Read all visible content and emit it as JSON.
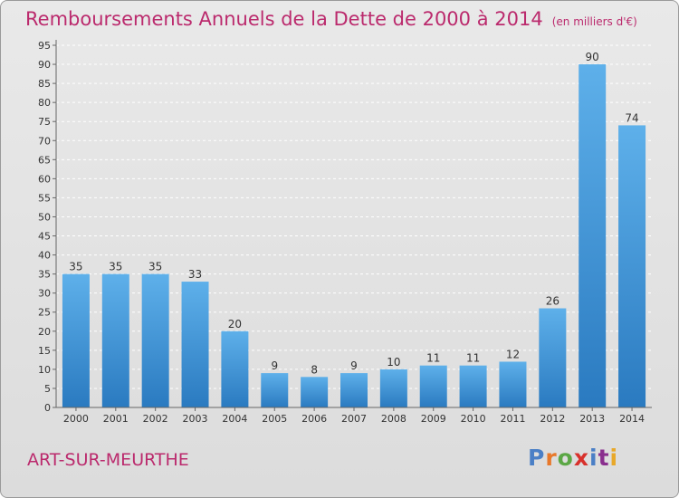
{
  "title": "Remboursements Annuels de la Dette de 2000 à 2014",
  "unit": "(en milliers d'€)",
  "place": "ART-SUR-MEURTHE",
  "logo": {
    "text": "Proxiti",
    "colors": [
      "#4a7fc6",
      "#e8782a",
      "#5ba745",
      "#d8312c",
      "#4a7fc6",
      "#8a2f8e",
      "#e8a82a"
    ]
  },
  "colors": {
    "bar_light": "#5eb0ea",
    "bar_dark": "#2a7ac0",
    "title": "#bb2a6d",
    "grid": "#ffffff"
  },
  "chart_data": {
    "type": "bar",
    "categories": [
      "2000",
      "2001",
      "2002",
      "2003",
      "2004",
      "2005",
      "2006",
      "2007",
      "2008",
      "2009",
      "2010",
      "2011",
      "2012",
      "2013",
      "2014"
    ],
    "values": [
      35,
      35,
      35,
      33,
      20,
      9,
      8,
      9,
      10,
      11,
      11,
      12,
      26,
      90,
      74
    ],
    "ylim": [
      0,
      95
    ],
    "yticks": [
      0,
      5,
      10,
      15,
      20,
      25,
      30,
      35,
      40,
      45,
      50,
      55,
      60,
      65,
      70,
      75,
      80,
      85,
      90,
      95
    ],
    "grid": true,
    "xlabel": "",
    "ylabel": ""
  }
}
